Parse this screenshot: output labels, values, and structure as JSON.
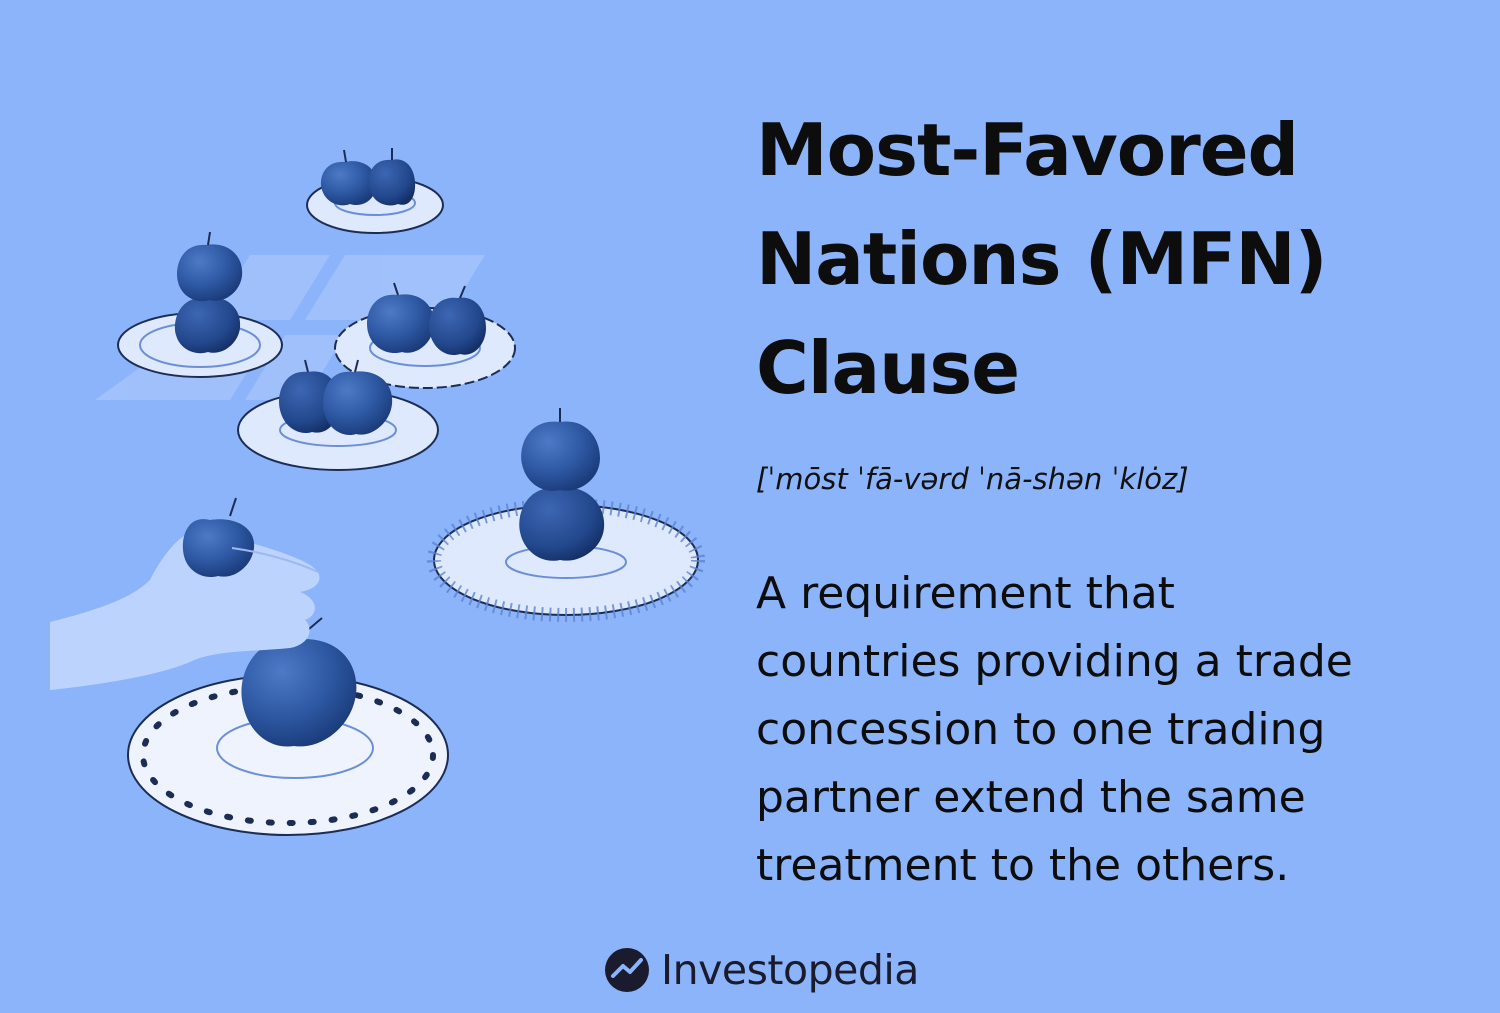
{
  "title_lines": [
    "Most-Favored",
    "Nations (MFN)",
    "Clause"
  ],
  "pronunciation": "[ˈmōst ˈfā-vərd ˈnā-shən ˈklȯz]",
  "definition_lines": [
    "A requirement that",
    "countries providing a trade",
    "concession to one trading",
    "partner extend the same",
    "treatment to the others."
  ],
  "brand": {
    "name": "Investopedia",
    "icon": "investopedia-logo-icon"
  },
  "illustration": {
    "icons": [
      "apple-plate-icon",
      "hand-holding-apple-icon"
    ],
    "colors": {
      "background": "#8cb4fb",
      "apple": "#2f5aa5",
      "apple_dark": "#1f3f80",
      "plate": "#dfe9fd",
      "hand": "#bcd3fd"
    }
  }
}
